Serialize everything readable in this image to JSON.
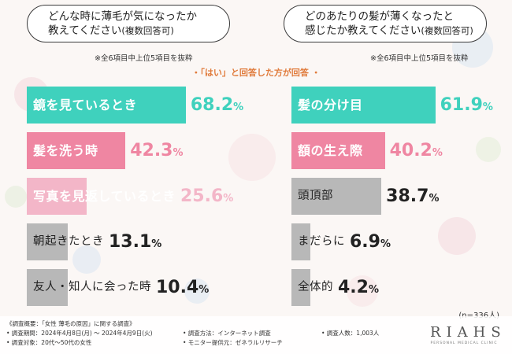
{
  "questions": {
    "left_main": "どんな時に薄毛が気になったか",
    "left_line2": "教えてください",
    "left_paren": "(複数回答可)",
    "right_main": "どのあたりの髪が薄くなったと",
    "right_line2": "感じたか教えてください",
    "right_paren": "(複数回答可)"
  },
  "notes": {
    "left": "※全6項目中上位5項目を抜粋",
    "right": "※全6項目中上位5項目を抜粋"
  },
  "subtitle": "・「はい」と回答した方が回答 ・",
  "sample_size": "(n=336人)",
  "colors": {
    "teal": "#3fd1bd",
    "pink": "#ef86a2",
    "light_pink": "#f3b6c8",
    "gray": "#b8b8b8"
  },
  "chart_data": [
    {
      "type": "bar",
      "orientation": "horizontal",
      "categories": [
        "鏡を見ているとき",
        "髪を洗う時",
        "写真を見返しているとき",
        "朝起きたとき",
        "友人・知人に会った時"
      ],
      "values": [
        68.2,
        42.3,
        25.6,
        13.1,
        10.4
      ],
      "value_labels": [
        {
          "num": "68.2",
          "pct": "%"
        },
        {
          "num": "42.3",
          "pct": "%"
        },
        {
          "num": "25.6",
          "pct": "%"
        },
        {
          "num": "13.1",
          "pct": "%"
        },
        {
          "num": "10.4",
          "pct": "%"
        }
      ],
      "unit": "%"
    },
    {
      "type": "bar",
      "orientation": "horizontal",
      "categories": [
        "髪の分け目",
        "額の生え際",
        "頭頂部",
        "まだらに",
        "全体的"
      ],
      "values": [
        61.9,
        40.2,
        38.7,
        6.9,
        4.2
      ],
      "value_labels": [
        {
          "num": "61.9",
          "pct": "%"
        },
        {
          "num": "40.2",
          "pct": "%"
        },
        {
          "num": "38.7",
          "pct": "%"
        },
        {
          "num": "6.9",
          "pct": "%"
        },
        {
          "num": "4.2",
          "pct": "%"
        }
      ],
      "unit": "%"
    }
  ],
  "footer": {
    "overview": "《調査概要：「女性 薄毛の原因」に関する調査》",
    "period": "• 調査期間：2024年4月8日(月) ～ 2024年4月9日(火)",
    "target": "• 調査対象：20代～50代の女性",
    "method": "• 調査方法：インターネット調査",
    "provider": "• モニター提供元：ゼネラルリサーチ",
    "count": "• 調査人数：1,003人"
  },
  "logo": {
    "name": "RIAHS",
    "tagline": "PERSONAL MEDICAL CLINIC"
  }
}
